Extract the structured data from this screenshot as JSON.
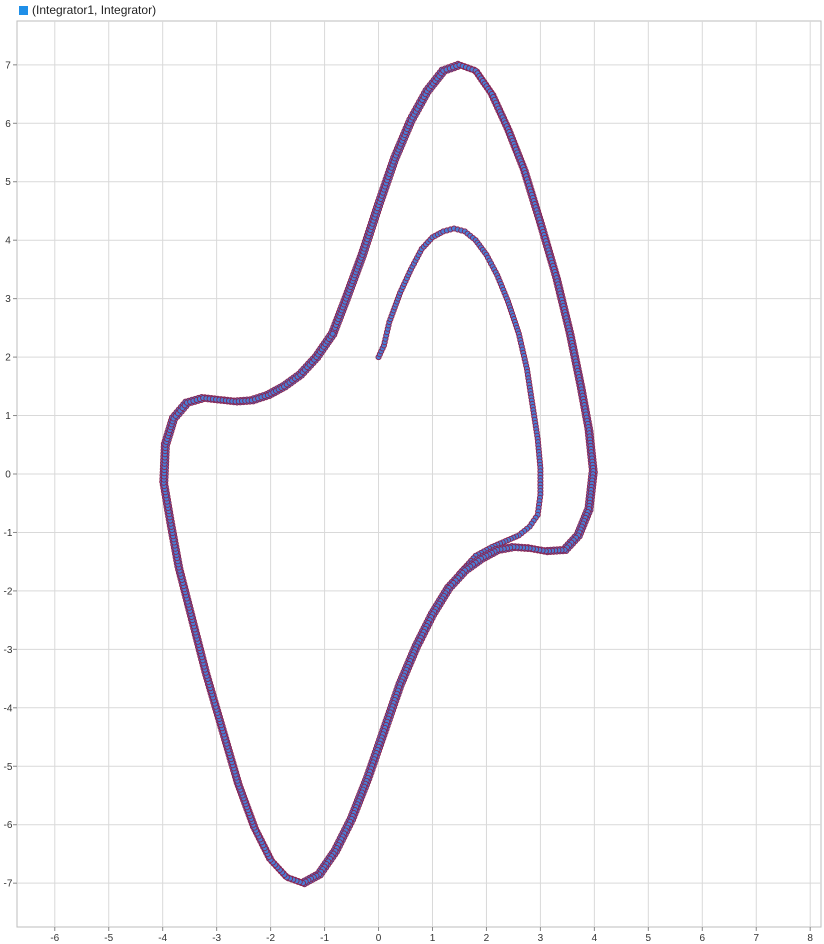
{
  "legend": {
    "label": "(Integrator1, Integrator)",
    "swatch_color": "#1f8fe8"
  },
  "chart_data": {
    "type": "scatter",
    "xlim": [
      -6.7,
      8.2
    ],
    "ylim": [
      -7.75,
      7.75
    ],
    "grid": true,
    "x_ticks": [
      -6,
      -5,
      -4,
      -3,
      -2,
      -1,
      0,
      1,
      2,
      3,
      4,
      5,
      6,
      7,
      8
    ],
    "y_ticks": [
      -7,
      -6,
      -5,
      -4,
      -3,
      -2,
      -1,
      0,
      1,
      2,
      3,
      4,
      5,
      6,
      7
    ],
    "marker_fill": "#4a7fd6",
    "marker_edge": "#8a2350",
    "series": [
      {
        "name": "(Integrator1, Integrator)",
        "transient": [
          [
            0.0,
            2.0
          ],
          [
            0.1,
            2.2
          ],
          [
            0.2,
            2.6
          ],
          [
            0.4,
            3.1
          ],
          [
            0.6,
            3.5
          ],
          [
            0.8,
            3.85
          ],
          [
            1.0,
            4.05
          ],
          [
            1.2,
            4.15
          ],
          [
            1.4,
            4.2
          ],
          [
            1.6,
            4.15
          ],
          [
            1.8,
            4.0
          ],
          [
            2.0,
            3.75
          ],
          [
            2.2,
            3.4
          ],
          [
            2.4,
            2.95
          ],
          [
            2.6,
            2.4
          ],
          [
            2.75,
            1.8
          ],
          [
            2.85,
            1.2
          ],
          [
            2.95,
            0.6
          ],
          [
            3.0,
            0.1
          ],
          [
            3.0,
            -0.35
          ],
          [
            2.95,
            -0.7
          ],
          [
            2.8,
            -0.9
          ],
          [
            2.6,
            -1.05
          ],
          [
            2.35,
            -1.15
          ],
          [
            2.1,
            -1.25
          ],
          [
            1.8,
            -1.4
          ],
          [
            1.5,
            -1.7
          ]
        ],
        "limit_cycle": [
          [
            -0.85,
            2.4
          ],
          [
            -0.6,
            3.0
          ],
          [
            -0.3,
            3.75
          ],
          [
            0.0,
            4.6
          ],
          [
            0.3,
            5.4
          ],
          [
            0.6,
            6.05
          ],
          [
            0.9,
            6.55
          ],
          [
            1.2,
            6.9
          ],
          [
            1.5,
            7.0
          ],
          [
            1.8,
            6.9
          ],
          [
            2.1,
            6.5
          ],
          [
            2.4,
            5.9
          ],
          [
            2.7,
            5.2
          ],
          [
            3.0,
            4.3
          ],
          [
            3.3,
            3.35
          ],
          [
            3.55,
            2.4
          ],
          [
            3.75,
            1.5
          ],
          [
            3.9,
            0.75
          ],
          [
            3.98,
            0.05
          ],
          [
            3.9,
            -0.6
          ],
          [
            3.7,
            -1.05
          ],
          [
            3.45,
            -1.3
          ],
          [
            3.1,
            -1.32
          ],
          [
            2.8,
            -1.27
          ],
          [
            2.5,
            -1.25
          ],
          [
            2.2,
            -1.3
          ],
          [
            1.9,
            -1.45
          ],
          [
            1.6,
            -1.65
          ],
          [
            1.3,
            -1.95
          ],
          [
            1.0,
            -2.4
          ],
          [
            0.7,
            -2.95
          ],
          [
            0.4,
            -3.6
          ],
          [
            0.1,
            -4.4
          ],
          [
            -0.2,
            -5.2
          ],
          [
            -0.5,
            -5.9
          ],
          [
            -0.8,
            -6.45
          ],
          [
            -1.1,
            -6.85
          ],
          [
            -1.4,
            -7.0
          ],
          [
            -1.7,
            -6.9
          ],
          [
            -2.0,
            -6.6
          ],
          [
            -2.3,
            -6.05
          ],
          [
            -2.6,
            -5.3
          ],
          [
            -2.9,
            -4.35
          ],
          [
            -3.2,
            -3.4
          ],
          [
            -3.45,
            -2.5
          ],
          [
            -3.7,
            -1.6
          ],
          [
            -3.85,
            -0.85
          ],
          [
            -3.98,
            -0.15
          ],
          [
            -3.95,
            0.5
          ],
          [
            -3.8,
            0.95
          ],
          [
            -3.55,
            1.22
          ],
          [
            -3.25,
            1.3
          ],
          [
            -2.95,
            1.27
          ],
          [
            -2.65,
            1.24
          ],
          [
            -2.35,
            1.26
          ],
          [
            -2.05,
            1.35
          ],
          [
            -1.75,
            1.5
          ],
          [
            -1.45,
            1.7
          ],
          [
            -1.15,
            2.0
          ],
          [
            -0.85,
            2.4
          ]
        ]
      }
    ]
  }
}
